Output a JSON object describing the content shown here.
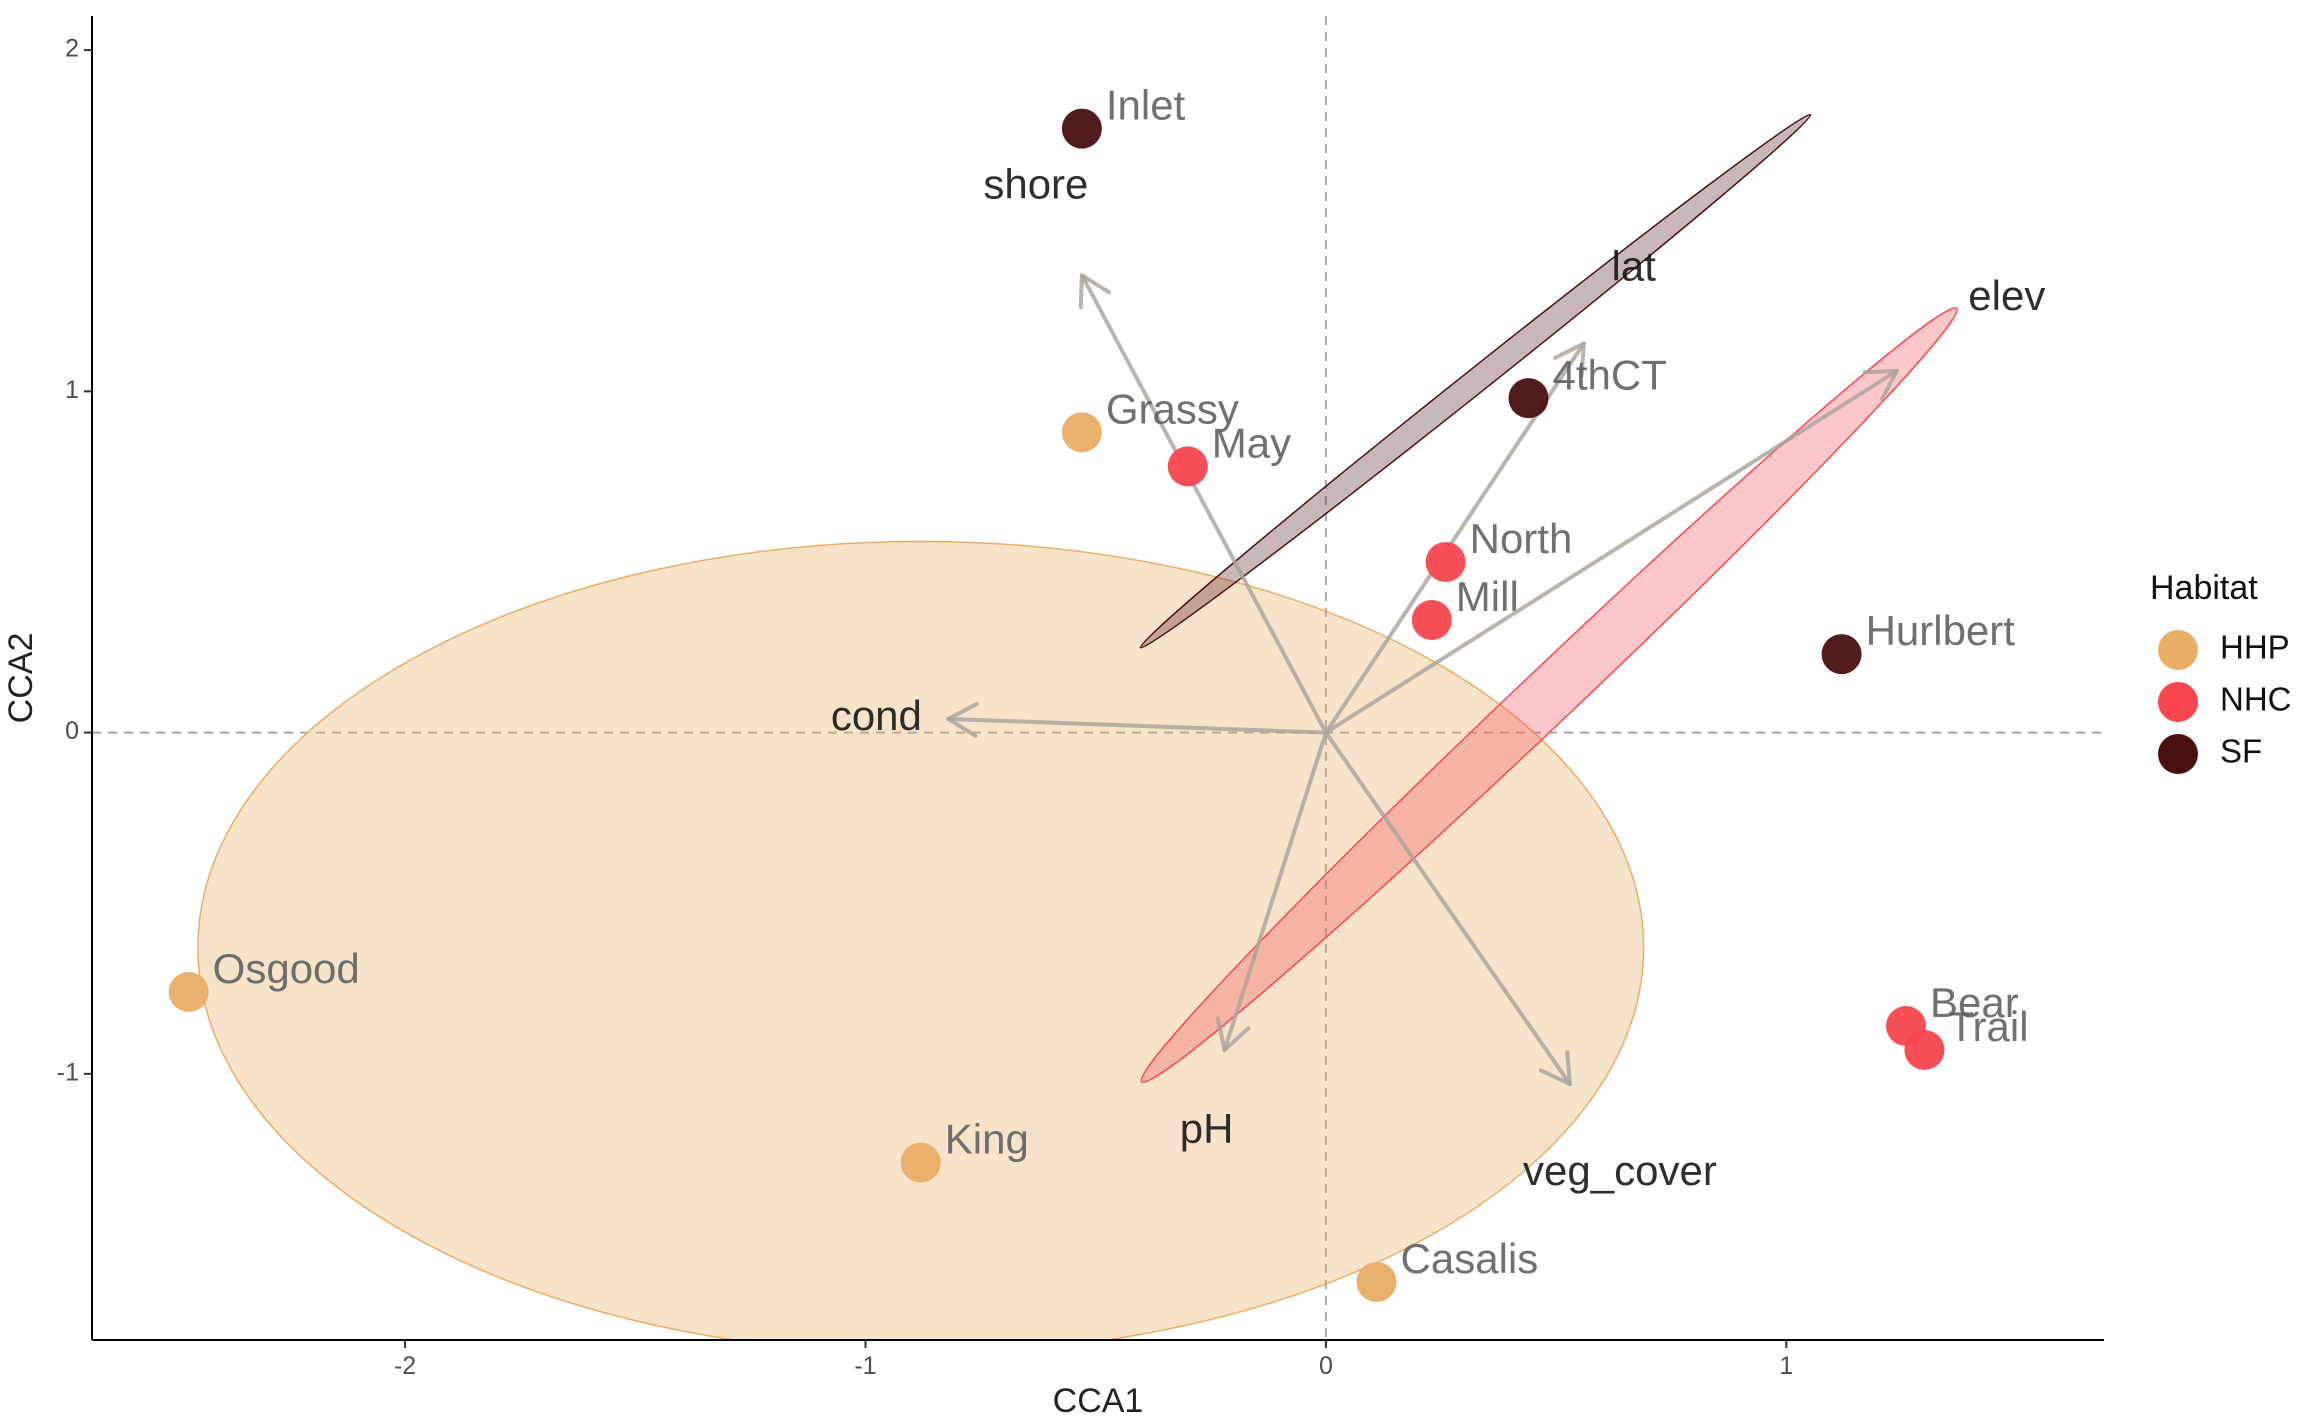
{
  "chart_data": {
    "type": "scatter",
    "xlabel": "CCA1",
    "ylabel": "CCA2",
    "xlim": [
      -2.68,
      1.69
    ],
    "ylim": [
      -1.78,
      2.1
    ],
    "x_ticks": [
      -2,
      -1,
      0,
      1
    ],
    "y_ticks": [
      -1,
      0,
      1,
      2
    ],
    "x_tick_labels": [
      "-2",
      "-1",
      "0",
      "1"
    ],
    "y_tick_labels": [
      "-1",
      "0",
      "1",
      "2"
    ],
    "reference_lines": {
      "x": 0,
      "y": 0,
      "style": "dashed"
    },
    "grid": false,
    "legend": {
      "title": "Habitat",
      "placement": "right",
      "entries": [
        {
          "name": "HHP",
          "color": "#e9ad66"
        },
        {
          "name": "NHC",
          "color": "#f7464f"
        },
        {
          "name": "SF",
          "color": "#4a1010"
        }
      ]
    },
    "series": [
      {
        "name": "HHP",
        "color": "#e9ad66",
        "points": [
          {
            "label": "Osgood",
            "x": -2.47,
            "y": -0.76
          },
          {
            "label": "King",
            "x": -0.88,
            "y": -1.26
          },
          {
            "label": "Casalis",
            "x": 0.11,
            "y": -1.61
          },
          {
            "label": "Grassy",
            "x": -0.53,
            "y": 0.88
          }
        ],
        "ellipse": {
          "cx": -0.88,
          "cy": -0.63,
          "rx": 1.57,
          "ry": 1.19,
          "angle": 0,
          "fill_opacity": 0.35
        }
      },
      {
        "name": "NHC",
        "color": "#f7464f",
        "points": [
          {
            "label": "May",
            "x": -0.3,
            "y": 0.78
          },
          {
            "label": "North",
            "x": 0.26,
            "y": 0.5
          },
          {
            "label": "Mill",
            "x": 0.23,
            "y": 0.33
          },
          {
            "label": "Bear",
            "x": 1.26,
            "y": -0.86
          },
          {
            "label": "Trail",
            "x": 1.3,
            "y": -0.93
          }
        ],
        "ellipse": {
          "cx": 0.485,
          "cy": 0.11,
          "rx": 1.22,
          "ry": 0.08,
          "angle": -43.5,
          "fill_opacity": 0.3
        }
      },
      {
        "name": "SF",
        "color": "#4a1010",
        "points": [
          {
            "label": "Inlet",
            "x": -0.53,
            "y": 1.77
          },
          {
            "label": "4thCT",
            "x": 0.44,
            "y": 0.98
          },
          {
            "label": "Hurlbert",
            "x": 1.12,
            "y": 0.23
          }
        ],
        "ellipse": {
          "cx": 0.325,
          "cy": 1.03,
          "rx": 0.93,
          "ry": 0.035,
          "angle": -38.5,
          "fill_opacity": 0.3
        }
      }
    ],
    "vectors": [
      {
        "name": "shore",
        "x": -0.53,
        "y": 1.34
      },
      {
        "name": "lat",
        "x": 0.56,
        "y": 1.14
      },
      {
        "name": "elev",
        "x": 1.24,
        "y": 1.06
      },
      {
        "name": "cond",
        "x": -0.82,
        "y": 0.04
      },
      {
        "name": "pH",
        "x": -0.22,
        "y": -0.93
      },
      {
        "name": "veg_cover",
        "x": 0.53,
        "y": -1.03
      }
    ]
  }
}
